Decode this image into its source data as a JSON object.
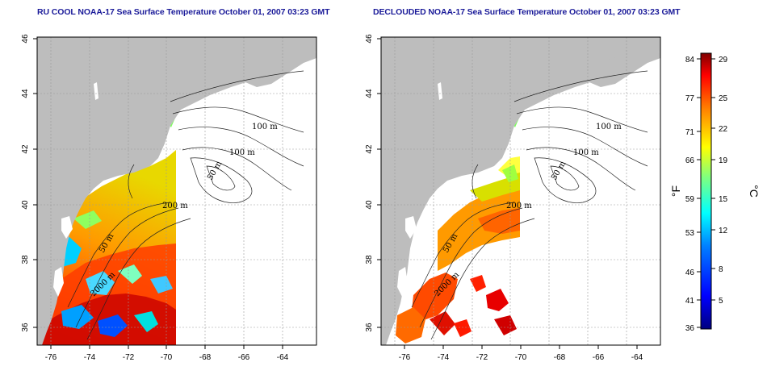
{
  "panels": [
    {
      "title": "RU COOL NOAA-17 Sea Surface Temperature October 01, 2007 03:23 GMT"
    },
    {
      "title": "DECLOUDED NOAA-17 Sea Surface Temperature October 01, 2007 03:23 GMT"
    }
  ],
  "map": {
    "lon_ticks": [
      "-76",
      "-74",
      "-72",
      "-70",
      "-68",
      "-66",
      "-64"
    ],
    "lat_ticks": [
      "36",
      "38",
      "40",
      "42",
      "44",
      "46"
    ],
    "contour_labels": [
      "100 m",
      "100 m",
      "50 m",
      "200 m",
      "50 m",
      "2000 m"
    ],
    "land_color": "#bdbdbd",
    "ocean_color": "#ffffff"
  },
  "colorbar": {
    "fahrenheit_label": "°F",
    "celsius_label": "°C",
    "fahrenheit_ticks": [
      "84",
      "77",
      "71",
      "66",
      "59",
      "53",
      "46",
      "41",
      "36"
    ],
    "celsius_ticks": [
      "29",
      "25",
      "22",
      "19",
      "15",
      "12",
      "8",
      "5"
    ],
    "colors": [
      "#00007f",
      "#0000ff",
      "#007fff",
      "#00ffff",
      "#7fff7f",
      "#ffff00",
      "#ff7f00",
      "#ff0000",
      "#7f0000"
    ]
  }
}
